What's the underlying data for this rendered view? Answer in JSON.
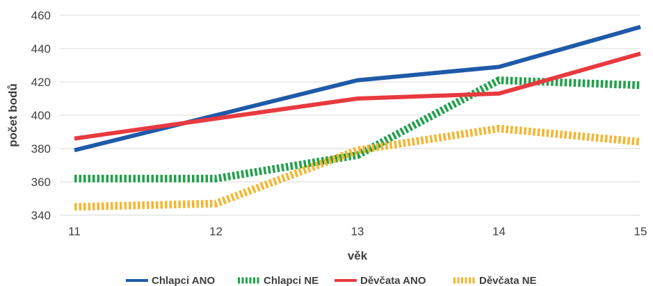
{
  "chart_data": {
    "type": "line",
    "title": "",
    "xlabel": "věk",
    "ylabel": "počet bodů",
    "x": [
      11,
      12,
      13,
      14,
      15
    ],
    "ylim": [
      340,
      460
    ],
    "yticks": [
      340,
      360,
      380,
      400,
      420,
      440,
      460
    ],
    "grid": true,
    "legend_position": "bottom",
    "series": [
      {
        "name": "Chlapci ANO",
        "values": [
          379,
          400,
          421,
          429,
          453
        ],
        "color": "#1f5aa8",
        "style": "solid"
      },
      {
        "name": "Chlapci NE",
        "values": [
          362,
          362,
          376,
          421,
          418
        ],
        "color": "#1fa049",
        "style": "dashed"
      },
      {
        "name": "Děvčata ANO",
        "values": [
          386,
          398,
          410,
          413,
          437
        ],
        "color": "#e83a3f",
        "style": "solid"
      },
      {
        "name": "Děvčata NE",
        "values": [
          345,
          347,
          379,
          392,
          384
        ],
        "color": "#f4b631",
        "style": "dashed"
      }
    ]
  }
}
